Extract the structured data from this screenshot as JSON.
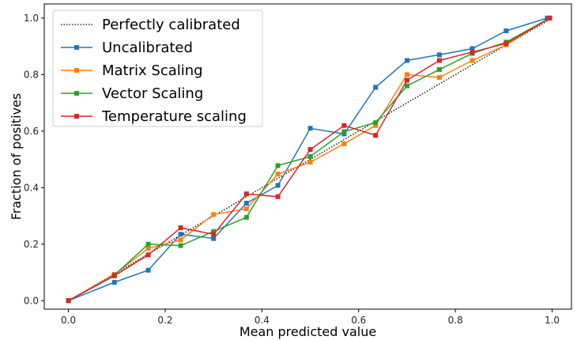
{
  "chart_data": {
    "type": "line",
    "title": "",
    "xlabel": "Mean predicted value",
    "ylabel": "Fraction of positives",
    "xlim": [
      -0.05,
      1.04
    ],
    "ylim": [
      -0.03,
      1.05
    ],
    "xticks": [
      0.0,
      0.2,
      0.4,
      0.6,
      0.8,
      1.0
    ],
    "xtick_labels": [
      "0.0",
      "0.2",
      "0.4",
      "0.6",
      "0.8",
      "1.0"
    ],
    "yticks": [
      0.0,
      0.2,
      0.4,
      0.6,
      0.8,
      1.0
    ],
    "ytick_labels": [
      "0.0",
      "0.2",
      "0.4",
      "0.6",
      "0.8",
      "1.0"
    ],
    "grid": false,
    "legend_position": "top-left",
    "reference_line": {
      "name": "Perfectly calibrated",
      "x": [
        0,
        1
      ],
      "y": [
        0,
        1
      ],
      "color": "#000000",
      "style": "dotted"
    },
    "series": [
      {
        "name": "Uncalibrated",
        "color": "#1f77b4",
        "marker": "square",
        "x": [
          0.0,
          0.095,
          0.165,
          0.232,
          0.3,
          0.368,
          0.433,
          0.5,
          0.57,
          0.635,
          0.7,
          0.767,
          0.835,
          0.905,
          0.99
        ],
        "y": [
          0.0,
          0.065,
          0.108,
          0.235,
          0.22,
          0.345,
          0.408,
          0.61,
          0.59,
          0.755,
          0.85,
          0.87,
          0.892,
          0.955,
          1.0
        ]
      },
      {
        "name": "Matrix Scaling",
        "color": "#ff7f0e",
        "marker": "square",
        "x": [
          0.0,
          0.095,
          0.165,
          0.232,
          0.3,
          0.368,
          0.433,
          0.5,
          0.57,
          0.635,
          0.7,
          0.767,
          0.835,
          0.905,
          0.995
        ],
        "y": [
          0.0,
          0.093,
          0.185,
          0.215,
          0.305,
          0.325,
          0.448,
          0.49,
          0.555,
          0.62,
          0.8,
          0.79,
          0.85,
          0.905,
          1.0
        ]
      },
      {
        "name": "Vector Scaling",
        "color": "#2ca02c",
        "marker": "square",
        "x": [
          0.0,
          0.095,
          0.165,
          0.232,
          0.3,
          0.368,
          0.433,
          0.5,
          0.57,
          0.635,
          0.7,
          0.767,
          0.835,
          0.905,
          0.995
        ],
        "y": [
          0.0,
          0.09,
          0.2,
          0.195,
          0.245,
          0.295,
          0.478,
          0.51,
          0.598,
          0.63,
          0.76,
          0.818,
          0.875,
          0.915,
          1.0
        ]
      },
      {
        "name": "Temperature scaling",
        "color": "#d62728",
        "marker": "square",
        "x": [
          0.0,
          0.095,
          0.165,
          0.232,
          0.3,
          0.368,
          0.433,
          0.5,
          0.57,
          0.635,
          0.7,
          0.767,
          0.835,
          0.905,
          0.995
        ],
        "y": [
          0.0,
          0.088,
          0.162,
          0.258,
          0.235,
          0.378,
          0.368,
          0.535,
          0.62,
          0.585,
          0.78,
          0.85,
          0.88,
          0.91,
          1.0
        ]
      }
    ]
  }
}
